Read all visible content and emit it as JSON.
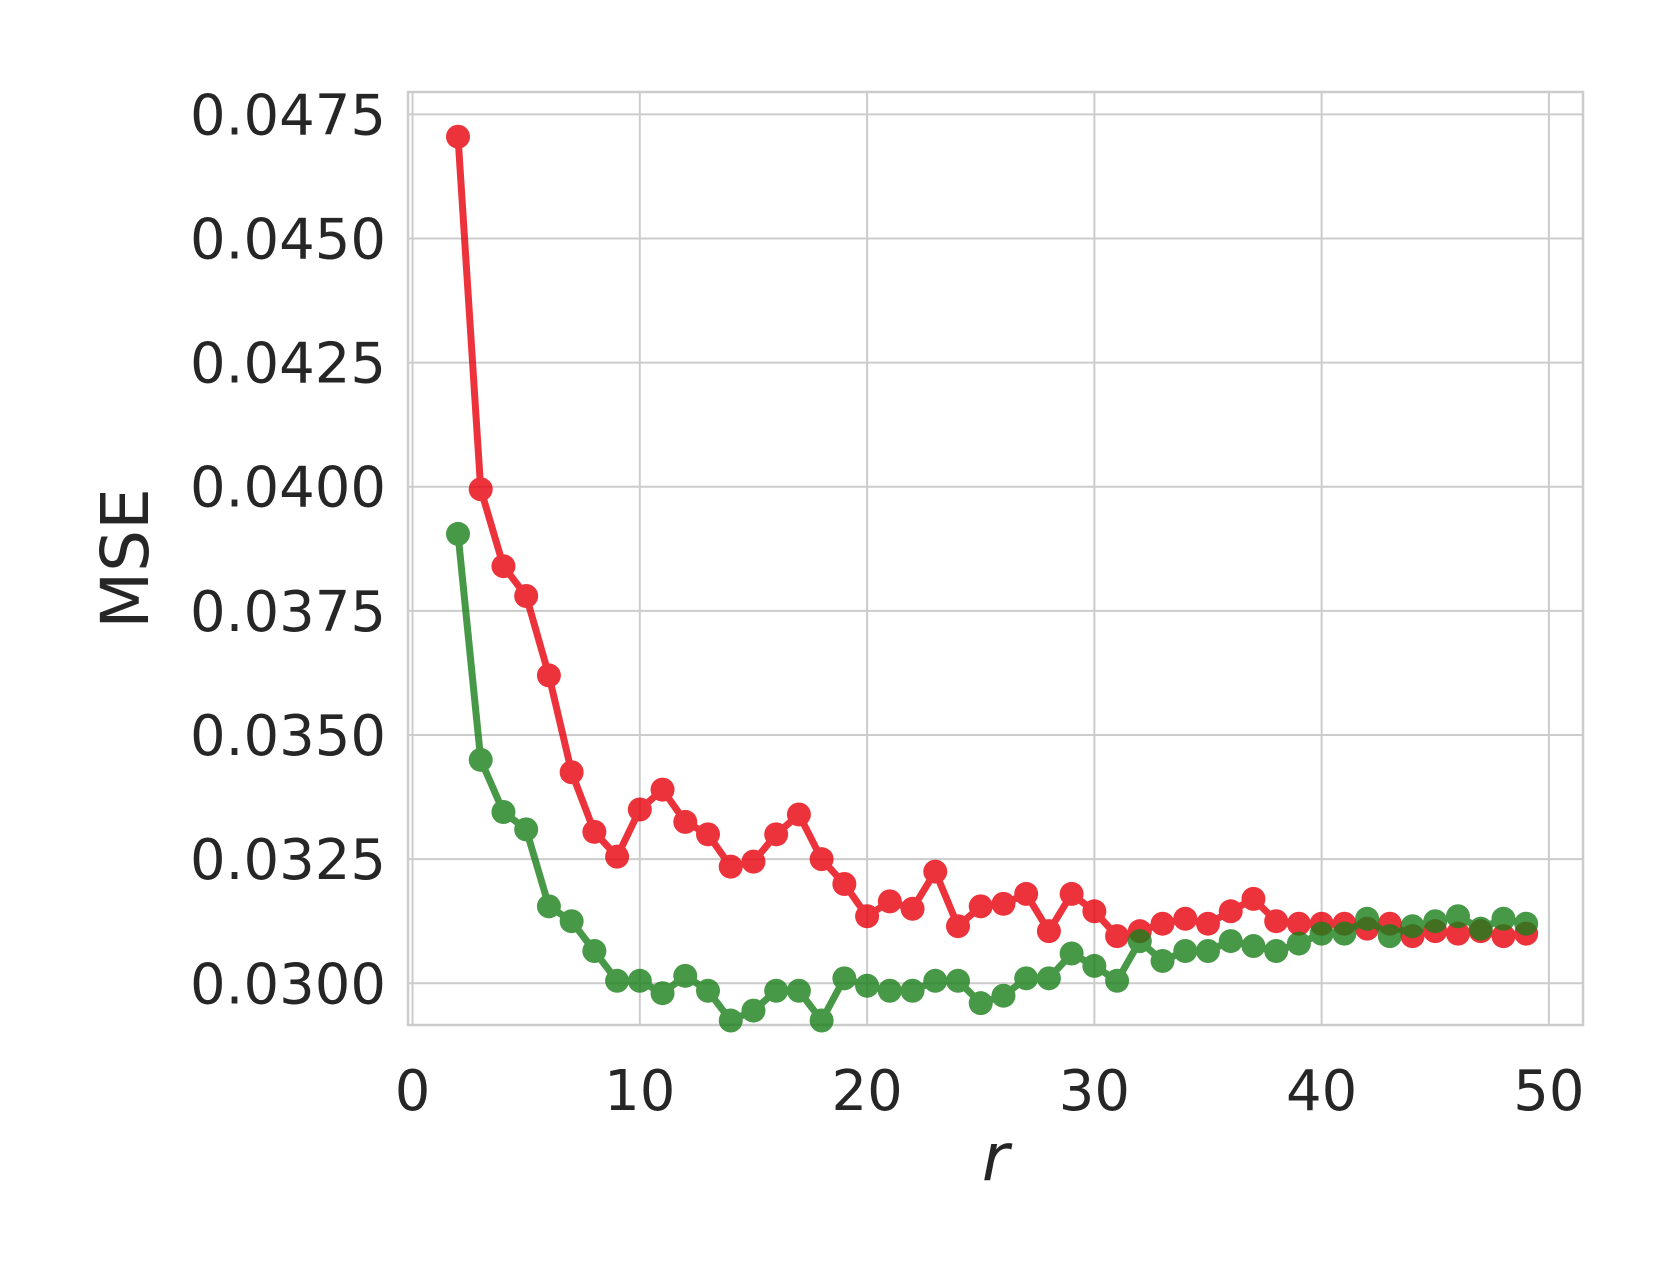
{
  "chart_data": {
    "type": "line",
    "title": "",
    "xlabel": "r",
    "ylabel": "MSE",
    "xlim": [
      -0.2,
      51.5
    ],
    "ylim": [
      0.02916,
      0.04795
    ],
    "grid": true,
    "xticks": [
      0,
      10,
      20,
      30,
      40,
      50
    ],
    "xtick_labels": [
      "0",
      "10",
      "20",
      "30",
      "40",
      "50"
    ],
    "yticks": [
      0.03,
      0.0325,
      0.035,
      0.0375,
      0.04,
      0.0425,
      0.045,
      0.0475
    ],
    "ytick_labels": [
      "0.0300",
      "0.0325",
      "0.0350",
      "0.0375",
      "0.0400",
      "0.0425",
      "0.0450",
      "0.0475"
    ],
    "x": [
      2,
      3,
      4,
      5,
      6,
      7,
      8,
      9,
      10,
      11,
      12,
      13,
      14,
      15,
      16,
      17,
      18,
      19,
      20,
      21,
      22,
      23,
      24,
      25,
      26,
      27,
      28,
      29,
      30,
      31,
      32,
      33,
      34,
      35,
      36,
      37,
      38,
      39,
      40,
      41,
      42,
      43,
      44,
      45,
      46,
      47,
      48,
      49
    ],
    "series": [
      {
        "color": "#e8000b",
        "values": [
          0.04705,
          0.03995,
          0.0384,
          0.0378,
          0.0362,
          0.03425,
          0.03305,
          0.03255,
          0.0335,
          0.0339,
          0.03325,
          0.033,
          0.03235,
          0.03245,
          0.033,
          0.0334,
          0.0325,
          0.032,
          0.03135,
          0.03165,
          0.0315,
          0.03225,
          0.03115,
          0.03155,
          0.0316,
          0.0318,
          0.03105,
          0.0318,
          0.03145,
          0.03095,
          0.03105,
          0.0312,
          0.0313,
          0.0312,
          0.03145,
          0.0317,
          0.03125,
          0.0312,
          0.0312,
          0.0312,
          0.0311,
          0.0312,
          0.03095,
          0.03105,
          0.031,
          0.03105,
          0.03095,
          0.031
        ]
      },
      {
        "color": "#1a7f1a",
        "values": [
          0.03905,
          0.0345,
          0.03345,
          0.0331,
          0.03155,
          0.03125,
          0.03065,
          0.03005,
          0.03005,
          0.0298,
          0.03015,
          0.02985,
          0.02925,
          0.02945,
          0.02985,
          0.02985,
          0.02925,
          0.0301,
          0.02995,
          0.02985,
          0.02985,
          0.03005,
          0.03005,
          0.0296,
          0.02975,
          0.0301,
          0.0301,
          0.0306,
          0.03035,
          0.03005,
          0.03085,
          0.03045,
          0.03065,
          0.03065,
          0.03085,
          0.03075,
          0.03065,
          0.0308,
          0.031,
          0.031,
          0.0313,
          0.03095,
          0.03115,
          0.03125,
          0.03135,
          0.0311,
          0.0313,
          0.0312
        ]
      }
    ]
  }
}
